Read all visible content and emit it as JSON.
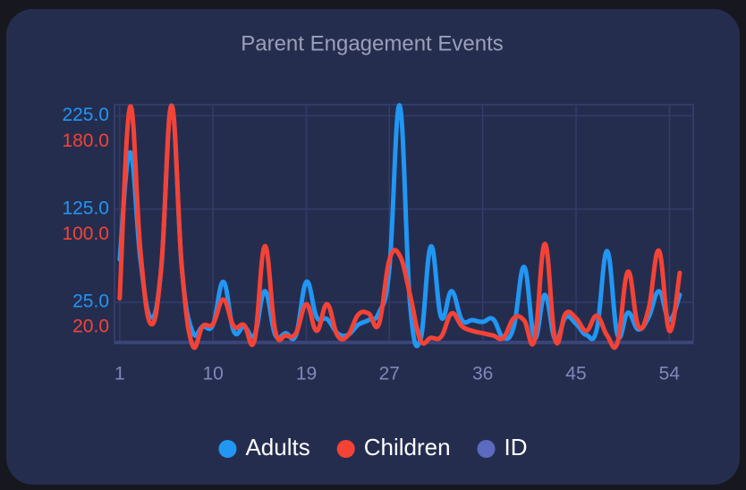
{
  "chart_data": {
    "type": "line",
    "title": "Parent Engagement Events",
    "x": [
      1,
      2,
      3,
      4,
      5,
      6,
      7,
      8,
      9,
      10,
      11,
      12,
      13,
      14,
      15,
      16,
      17,
      18,
      19,
      20,
      21,
      22,
      23,
      24,
      25,
      26,
      27,
      28,
      29,
      30,
      31,
      32,
      33,
      34,
      35,
      36,
      37,
      38,
      39,
      40,
      41,
      42,
      43,
      44,
      45,
      46,
      47,
      48,
      49,
      50,
      51,
      52,
      53,
      54,
      55
    ],
    "xlim": [
      0.5,
      56.3
    ],
    "xticks": [
      1,
      10,
      19,
      27,
      36,
      45,
      54
    ],
    "ylim": [
      -18,
      237
    ],
    "yticks": [
      {
        "value": 25,
        "label": "25.0"
      },
      {
        "value": 125,
        "label": "125.0"
      },
      {
        "value": 225,
        "label": "225.0"
      }
    ],
    "y2lim": [
      7,
      212
    ],
    "y2ticks": [
      {
        "value": 20,
        "label": "20.0"
      },
      {
        "value": 100,
        "label": "100.0"
      },
      {
        "value": 180,
        "label": "180.0"
      }
    ],
    "grid": true,
    "legend": "bottom",
    "series": [
      {
        "name": "Adults",
        "color": "#2196f3",
        "values": [
          71,
          186,
          71,
          9,
          61,
          236,
          61,
          -6,
          -1,
          1,
          47,
          -6,
          -1,
          -10,
          37,
          -10,
          -8,
          -10,
          47,
          9,
          7,
          -8,
          -10,
          1,
          6,
          14,
          61,
          236,
          23,
          -15,
          85,
          9,
          37,
          6,
          6,
          4,
          7,
          -13,
          -1,
          63,
          -13,
          33,
          -15,
          9,
          2,
          -10,
          -4,
          80,
          -10,
          14,
          -4,
          9,
          37,
          6,
          33
        ]
      },
      {
        "name": "Children",
        "color": "#f44336",
        "axis": "y2",
        "values": [
          45,
          210,
          86,
          23,
          71,
          211,
          71,
          5,
          21,
          23,
          44,
          21,
          22,
          9,
          90,
          17,
          13,
          15,
          40,
          17,
          40,
          13,
          13,
          31,
          32,
          23,
          78,
          82,
          48,
          9,
          11,
          12,
          32,
          21,
          17,
          15,
          13,
          11,
          28,
          26,
          9,
          92,
          9,
          32,
          28,
          17,
          30,
          13,
          7,
          68,
          21,
          36,
          86,
          17,
          67
        ]
      },
      {
        "name": "ID",
        "color": "#5c6bc0",
        "values": [
          null,
          null,
          null,
          null,
          null,
          null,
          null,
          null,
          null,
          null,
          null,
          null,
          null,
          null,
          null,
          null,
          null,
          null,
          null,
          null,
          null,
          null,
          null,
          null,
          null,
          null,
          null,
          null,
          null,
          null,
          null,
          null,
          null,
          null,
          null,
          null,
          null,
          null,
          null,
          null,
          null,
          null,
          null,
          null,
          null,
          null,
          null,
          null,
          null,
          null,
          null,
          null,
          null,
          null,
          null
        ]
      }
    ]
  }
}
